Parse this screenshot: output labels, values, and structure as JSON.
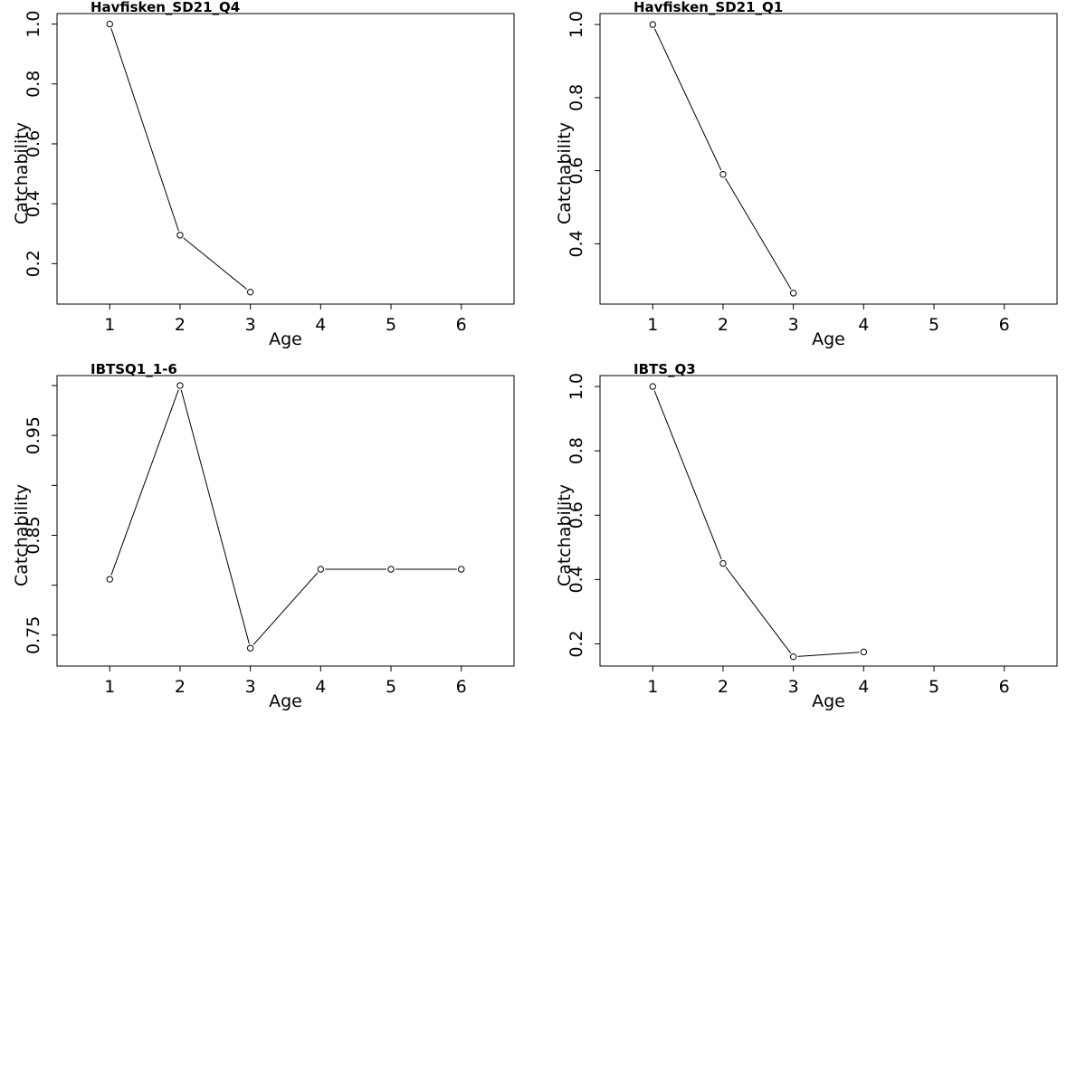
{
  "colors": {
    "line": "#000000",
    "background": "#ffffff",
    "point_fill": "#ffffff"
  },
  "chart_data": [
    {
      "type": "line",
      "title": "Havfisken_SD21_Q4",
      "xlabel": "Age",
      "ylabel": "Catchability",
      "xlim": [
        0.25,
        6.75
      ],
      "ylim": [
        0.065,
        1.035
      ],
      "xticks": [
        "1",
        "2",
        "3",
        "4",
        "5",
        "6"
      ],
      "yticks": [
        "0.2",
        "0.4",
        "0.6",
        "0.8",
        "1.0"
      ],
      "grid": false,
      "x": [
        1,
        2,
        3
      ],
      "y": [
        1.0,
        0.295,
        0.105
      ]
    },
    {
      "type": "line",
      "title": "Havfisken_SD21_Q1",
      "xlabel": "Age",
      "ylabel": "Catchability",
      "xlim": [
        0.25,
        6.75
      ],
      "ylim": [
        0.235,
        1.03
      ],
      "xticks": [
        "1",
        "2",
        "3",
        "4",
        "5",
        "6"
      ],
      "yticks": [
        "0.4",
        "0.6",
        "0.8",
        "1.0"
      ],
      "grid": false,
      "x": [
        1,
        2,
        3
      ],
      "y": [
        1.0,
        0.59,
        0.265
      ]
    },
    {
      "type": "line",
      "title": "IBTSQ1_1-6",
      "xlabel": "Age",
      "ylabel": "Catchability",
      "xlim": [
        0.25,
        6.75
      ],
      "ylim": [
        0.719,
        1.01
      ],
      "xticks": [
        "1",
        "2",
        "3",
        "4",
        "5",
        "6"
      ],
      "yticks": [
        "0.75",
        "0.85",
        "0.95"
      ],
      "yticks_unlabeled": [
        0.8,
        0.9,
        1.0
      ],
      "grid": false,
      "x": [
        1,
        2,
        3,
        4,
        5,
        6
      ],
      "y": [
        0.806,
        1.0,
        0.737,
        0.816,
        0.816,
        0.816
      ]
    },
    {
      "type": "line",
      "title": "IBTS_Q3",
      "xlabel": "Age",
      "ylabel": "Catchability",
      "xlim": [
        0.25,
        6.75
      ],
      "ylim": [
        0.131,
        1.034
      ],
      "xticks": [
        "1",
        "2",
        "3",
        "4",
        "5",
        "6"
      ],
      "yticks": [
        "0.2",
        "0.4",
        "0.6",
        "0.8",
        "1.0"
      ],
      "grid": false,
      "x": [
        1,
        2,
        3,
        4
      ],
      "y": [
        1.0,
        0.45,
        0.16,
        0.175
      ]
    }
  ]
}
